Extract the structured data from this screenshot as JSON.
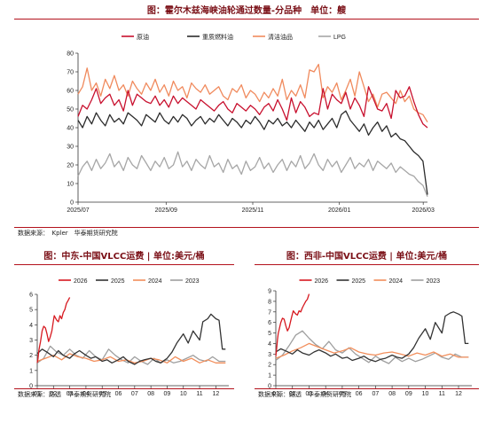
{
  "top_title": "图：霍尔木兹海峡油轮通过数量-分品种　单位：艘",
  "top_source": "数据来源：　Kpler　华泰期货研究院",
  "bl_title": "图：中东-中国VLCC运费 | 单位:美元/桶",
  "bl_source": "数据来源：路透　华泰期货研究院",
  "br_title": "图：西非-中国VLCC运费 | 单位:美元/桶",
  "br_source": "数据来源：路透　华泰期货研究院",
  "colors": {
    "crude": "#c8102e",
    "fuel": "#2b2b2b",
    "product": "#f08a5d",
    "lpg": "#a6a6a6",
    "s2026": "#d71920",
    "s2025": "#333333",
    "s2024": "#f28e5b",
    "s2023": "#9e9e9e"
  },
  "chart_data": [
    {
      "type": "line",
      "title": "图：霍尔木兹海峡油轮通过数量-分品种　单位：艘",
      "x_ticks": [
        "2025/07",
        "2025/09",
        "2025/11",
        "2026/01",
        "2026/03"
      ],
      "x_range": [
        "2025-07-01",
        "2026-03-04"
      ],
      "y_ticks": [
        "0",
        "10",
        "20",
        "30",
        "40",
        "50",
        "60",
        "70",
        "80"
      ],
      "ylim": [
        0,
        80
      ],
      "legend": [
        "原油",
        "重质燃料油",
        "清洁油品",
        "LPG"
      ],
      "series": [
        {
          "name": "原油",
          "color": "#c8102e",
          "values": [
            46,
            52,
            50,
            55,
            61,
            53,
            56,
            58,
            52,
            55,
            49,
            60,
            52,
            58,
            56,
            54,
            53,
            57,
            52,
            55,
            51,
            57,
            53,
            56,
            54,
            52,
            50,
            55,
            53,
            51,
            49,
            52,
            54,
            50,
            48,
            53,
            51,
            49,
            52,
            50,
            47,
            51,
            53,
            49,
            55,
            50,
            44,
            56,
            48,
            54,
            51,
            46,
            48,
            47,
            61,
            50,
            58,
            55,
            53,
            59,
            50,
            56,
            52,
            46,
            62,
            56,
            50,
            49,
            53,
            45,
            60,
            56,
            57,
            62,
            54,
            47,
            42,
            40
          ]
        },
        {
          "name": "重质燃料油",
          "color": "#2b2b2b",
          "values": [
            44,
            40,
            46,
            42,
            48,
            44,
            41,
            47,
            43,
            45,
            42,
            48,
            46,
            44,
            41,
            47,
            45,
            43,
            48,
            44,
            42,
            46,
            43,
            47,
            45,
            41,
            44,
            46,
            42,
            45,
            43,
            47,
            44,
            41,
            45,
            43,
            40,
            44,
            42,
            46,
            43,
            39,
            44,
            42,
            45,
            41,
            43,
            40,
            44,
            41,
            38,
            43,
            40,
            44,
            39,
            42,
            45,
            40,
            47,
            49,
            44,
            41,
            38,
            42,
            36,
            40,
            43,
            38,
            41,
            35,
            37,
            34,
            33,
            30,
            27,
            25,
            22,
            4
          ]
        },
        {
          "name": "清洁油品",
          "color": "#f08a5d",
          "values": [
            58,
            62,
            72,
            60,
            64,
            57,
            66,
            61,
            68,
            60,
            63,
            57,
            65,
            61,
            58,
            64,
            60,
            66,
            59,
            63,
            57,
            65,
            60,
            62,
            56,
            64,
            61,
            59,
            63,
            58,
            60,
            62,
            57,
            55,
            61,
            59,
            63,
            56,
            60,
            58,
            54,
            59,
            56,
            61,
            57,
            66,
            55,
            60,
            57,
            63,
            56,
            71,
            70,
            74,
            56,
            62,
            59,
            64,
            55,
            60,
            66,
            57,
            70,
            62,
            54,
            58,
            51,
            58,
            59,
            56,
            53,
            60,
            54,
            57,
            50,
            48,
            47,
            43
          ]
        },
        {
          "name": "LPG",
          "color": "#a6a6a6",
          "values": [
            14,
            19,
            22,
            17,
            23,
            18,
            21,
            26,
            19,
            22,
            17,
            24,
            20,
            18,
            25,
            21,
            17,
            22,
            19,
            24,
            18,
            20,
            27,
            19,
            22,
            17,
            23,
            20,
            18,
            25,
            19,
            21,
            16,
            23,
            18,
            20,
            15,
            22,
            17,
            19,
            24,
            18,
            21,
            16,
            20,
            23,
            17,
            22,
            19,
            25,
            18,
            21,
            26,
            20,
            17,
            23,
            19,
            22,
            16,
            20,
            24,
            18,
            21,
            19,
            23,
            17,
            22,
            20,
            18,
            21,
            16,
            19,
            17,
            15,
            14,
            11,
            9,
            3
          ]
        }
      ]
    },
    {
      "type": "line",
      "title": "图：中东-中国VLCC运费 | 单位:美元/桶",
      "x_ticks": [
        "01",
        "02",
        "03",
        "04",
        "05",
        "06",
        "07",
        "08",
        "09",
        "10",
        "11",
        "12"
      ],
      "y_ticks": [
        "0",
        "1",
        "2",
        "3",
        "4",
        "5",
        "6"
      ],
      "ylim": [
        0,
        6
      ],
      "legend": [
        "2026",
        "2025",
        "2024",
        "2023"
      ],
      "series": [
        {
          "name": "2026",
          "color": "#d71920",
          "x": [
            1,
            1.05,
            1.1,
            1.15,
            1.2,
            1.3,
            1.4,
            1.5,
            1.6,
            1.7,
            1.8,
            1.9,
            2.0,
            2.05,
            2.1,
            2.2,
            2.3,
            2.4,
            2.5,
            2.6,
            2.7,
            2.8,
            2.9,
            3.0
          ],
          "values": [
            1.5,
            1.8,
            2.3,
            2.6,
            2.9,
            3.6,
            3.9,
            3.8,
            3.4,
            2.9,
            3.2,
            3.6,
            4.3,
            4.6,
            4.5,
            4.3,
            4.2,
            4.6,
            4.4,
            4.8,
            5.0,
            5.4,
            5.6,
            5.8
          ]
        },
        {
          "name": "2025",
          "color": "#333333",
          "x": [
            1,
            1.3,
            1.6,
            2,
            2.3,
            2.6,
            3,
            3.3,
            3.6,
            4,
            4.3,
            4.6,
            5,
            5.3,
            5.6,
            6,
            6.3,
            6.6,
            7,
            7.3,
            7.6,
            8,
            8.3,
            8.6,
            9,
            9.3,
            9.6,
            10,
            10.3,
            10.6,
            11,
            11.2,
            11.5,
            11.7,
            12,
            12.2,
            12.4,
            12.6
          ],
          "values": [
            2.1,
            2.4,
            2.2,
            1.9,
            2.3,
            2.0,
            1.8,
            2.1,
            2.3,
            2.0,
            1.8,
            1.9,
            1.6,
            1.7,
            1.5,
            1.7,
            1.9,
            1.6,
            1.4,
            1.6,
            1.7,
            1.8,
            1.6,
            1.5,
            1.8,
            2.2,
            2.8,
            3.4,
            2.8,
            3.6,
            3.0,
            4.2,
            4.4,
            4.7,
            4.4,
            4.3,
            2.4,
            2.4
          ]
        },
        {
          "name": "2024",
          "color": "#f28e5b",
          "x": [
            1,
            1.5,
            2,
            2.5,
            3,
            3.5,
            4,
            4.5,
            5,
            5.5,
            6,
            6.5,
            7,
            7.5,
            8,
            8.5,
            9,
            9.5,
            10,
            10.5,
            11,
            11.5,
            12,
            12.6
          ],
          "values": [
            1.6,
            1.8,
            2.0,
            1.7,
            2.1,
            1.9,
            1.8,
            1.6,
            1.7,
            1.9,
            1.6,
            1.7,
            1.5,
            1.6,
            1.8,
            1.7,
            1.5,
            1.9,
            1.6,
            1.8,
            1.5,
            1.7,
            1.5,
            1.5
          ]
        },
        {
          "name": "2023",
          "color": "#9e9e9e",
          "x": [
            1,
            1.4,
            1.8,
            2.2,
            2.6,
            3,
            3.4,
            3.8,
            4.2,
            4.6,
            5,
            5.4,
            5.8,
            6.2,
            6.6,
            7,
            7.4,
            7.8,
            8.2,
            8.6,
            9,
            9.4,
            9.8,
            10.2,
            10.6,
            11,
            11.4,
            11.8,
            12.2,
            12.6
          ],
          "values": [
            1.5,
            1.8,
            2.6,
            2.2,
            2.0,
            2.4,
            2.0,
            1.8,
            2.3,
            1.9,
            1.7,
            2.4,
            2.0,
            1.7,
            1.5,
            1.9,
            1.6,
            1.4,
            1.8,
            1.5,
            1.7,
            1.5,
            1.6,
            1.8,
            2.0,
            1.7,
            1.6,
            1.9,
            1.6,
            1.6
          ]
        }
      ]
    },
    {
      "type": "line",
      "title": "图：西非-中国VLCC运费 | 单位:美元/桶",
      "x_ticks": [
        "01",
        "02",
        "03",
        "04",
        "05",
        "06",
        "07",
        "08",
        "09",
        "10",
        "11",
        "12"
      ],
      "y_ticks": [
        "0",
        "1",
        "2",
        "3",
        "4",
        "5",
        "6",
        "7",
        "8",
        "9"
      ],
      "ylim": [
        0,
        9
      ],
      "legend": [
        "2026",
        "2025",
        "2024",
        "2023"
      ],
      "series": [
        {
          "name": "2026",
          "color": "#d71920",
          "x": [
            1,
            1.05,
            1.1,
            1.15,
            1.2,
            1.3,
            1.4,
            1.5,
            1.6,
            1.7,
            1.8,
            1.9,
            2.0,
            2.05,
            2.1,
            2.2,
            2.3,
            2.4,
            2.5,
            2.6,
            2.7,
            2.8,
            2.9,
            3.0
          ],
          "values": [
            2.8,
            3.5,
            4.4,
            5.0,
            5.3,
            6.0,
            6.4,
            6.3,
            5.7,
            5.2,
            5.5,
            6.2,
            6.8,
            7.1,
            7.0,
            6.8,
            6.7,
            7.1,
            7.0,
            7.4,
            7.7,
            8.0,
            8.2,
            8.7
          ]
        },
        {
          "name": "2025",
          "color": "#333333",
          "x": [
            1,
            1.3,
            1.6,
            2,
            2.3,
            2.6,
            3,
            3.3,
            3.6,
            4,
            4.3,
            4.6,
            5,
            5.3,
            5.6,
            6,
            6.3,
            6.6,
            7,
            7.3,
            7.6,
            8,
            8.3,
            8.6,
            9,
            9.3,
            9.6,
            10,
            10.3,
            10.6,
            11,
            11.2,
            11.5,
            11.7,
            12,
            12.2,
            12.4,
            12.6
          ],
          "values": [
            3.2,
            3.5,
            3.3,
            3.0,
            3.4,
            3.1,
            2.9,
            3.2,
            3.4,
            3.1,
            2.8,
            3.0,
            2.6,
            2.7,
            2.4,
            2.6,
            2.8,
            2.5,
            2.3,
            2.5,
            2.6,
            2.9,
            2.7,
            2.6,
            3.0,
            3.6,
            4.5,
            5.4,
            4.4,
            6.0,
            5.0,
            6.6,
            6.9,
            7.0,
            6.8,
            6.6,
            4.0,
            4.0
          ]
        },
        {
          "name": "2024",
          "color": "#f28e5b",
          "x": [
            1,
            1.5,
            2,
            2.5,
            3,
            3.5,
            4,
            4.5,
            5,
            5.5,
            6,
            6.5,
            7,
            7.5,
            8,
            8.5,
            9,
            9.5,
            10,
            10.5,
            11,
            11.5,
            12,
            12.6
          ],
          "values": [
            2.6,
            2.9,
            3.3,
            3.6,
            4.0,
            3.7,
            3.4,
            3.1,
            3.3,
            3.6,
            3.2,
            3.0,
            2.9,
            3.1,
            3.2,
            3.0,
            2.8,
            3.1,
            2.9,
            3.2,
            2.8,
            3.0,
            2.7,
            2.7
          ]
        },
        {
          "name": "2023",
          "color": "#9e9e9e",
          "x": [
            1,
            1.4,
            1.8,
            2.2,
            2.6,
            3,
            3.4,
            3.8,
            4.2,
            4.6,
            5,
            5.4,
            5.8,
            6.2,
            6.6,
            7,
            7.4,
            7.8,
            8.2,
            8.6,
            9,
            9.4,
            9.8,
            10.2,
            10.6,
            11,
            11.4,
            11.8,
            12.2,
            12.6
          ],
          "values": [
            2.4,
            2.9,
            3.8,
            4.8,
            5.2,
            4.5,
            3.9,
            3.5,
            4.2,
            3.4,
            3.1,
            3.6,
            3.0,
            2.6,
            2.2,
            2.8,
            2.4,
            2.1,
            2.7,
            2.3,
            2.6,
            2.3,
            2.5,
            2.8,
            3.1,
            2.7,
            2.5,
            3.0,
            2.7,
            2.7
          ]
        }
      ]
    }
  ]
}
